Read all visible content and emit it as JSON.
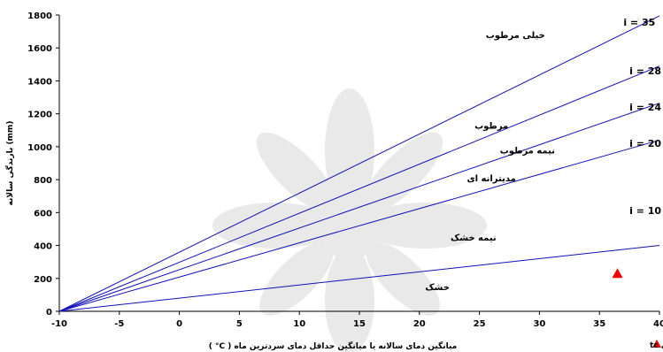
{
  "chart_data": {
    "type": "line",
    "xlabel": "میانگین دمای سالانه یا میانگین حداقل دمای سردترین ماه ( C° )",
    "ylabel": "بارندگی سالانه (mm)",
    "xlim": [
      -10,
      40
    ],
    "ylim": [
      0,
      1800
    ],
    "x_ticks": [
      "-10",
      "-5",
      "0",
      "5",
      "10",
      "15",
      "20",
      "25",
      "30",
      "35",
      "40"
    ],
    "y_ticks": [
      "0",
      "200",
      "400",
      "600",
      "800",
      "1000",
      "1200",
      "1400",
      "1600",
      "1800"
    ],
    "grid": false,
    "series": [
      {
        "name": "i = 10",
        "x": [
          -10,
          40
        ],
        "y": [
          0,
          400
        ]
      },
      {
        "name": "i = 20",
        "x": [
          -10,
          40
        ],
        "y": [
          0,
          1040
        ]
      },
      {
        "name": "i = 24",
        "x": [
          -10,
          40
        ],
        "y": [
          0,
          1265
        ]
      },
      {
        "name": "i = 28",
        "x": [
          -10,
          40
        ],
        "y": [
          0,
          1490
        ]
      },
      {
        "name": "i = 35",
        "x": [
          -10,
          40
        ],
        "y": [
          0,
          1795
        ]
      }
    ],
    "zone_labels": [
      {
        "text": "خیلی مرطوب",
        "x": 28,
        "y": 1660
      },
      {
        "text": "مرطوب",
        "x": 26,
        "y": 1110
      },
      {
        "text": "نیمه مرطوب",
        "x": 29,
        "y": 960
      },
      {
        "text": "مدیترانه ای",
        "x": 26,
        "y": 790
      },
      {
        "text": "نیمه خشک",
        "x": 24.5,
        "y": 430
      },
      {
        "text": "خشک",
        "x": 21.5,
        "y": 130
      }
    ],
    "index_labels": [
      {
        "text": "i = 35",
        "x": 37,
        "y": 1735
      },
      {
        "text": "i = 28",
        "x": 37.5,
        "y": 1440
      },
      {
        "text": "i = 24",
        "x": 37.5,
        "y": 1220
      },
      {
        "text": "i = 20",
        "x": 37.5,
        "y": 1000
      },
      {
        "text": "i = 10",
        "x": 37.5,
        "y": 590
      }
    ],
    "marker": {
      "label": "طبقه دمایی tc",
      "x": 36.5,
      "y": 230,
      "color": "#ff0000"
    },
    "line_color": "#1111bb"
  }
}
